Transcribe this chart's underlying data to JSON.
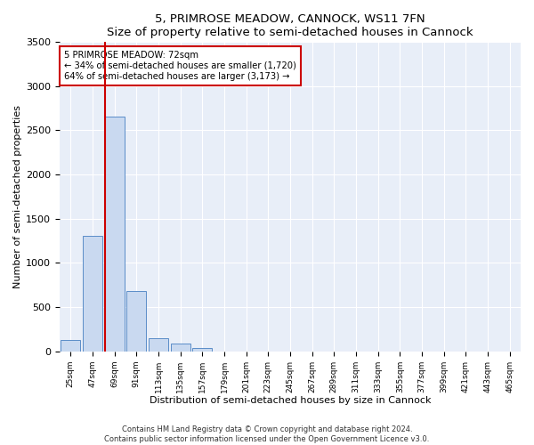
{
  "title1": "5, PRIMROSE MEADOW, CANNOCK, WS11 7FN",
  "title2": "Size of property relative to semi-detached houses in Cannock",
  "xlabel": "Distribution of semi-detached houses by size in Cannock",
  "ylabel": "Number of semi-detached properties",
  "categories": [
    "25sqm",
    "47sqm",
    "69sqm",
    "91sqm",
    "113sqm",
    "135sqm",
    "157sqm",
    "179sqm",
    "201sqm",
    "223sqm",
    "245sqm",
    "267sqm",
    "289sqm",
    "311sqm",
    "333sqm",
    "355sqm",
    "377sqm",
    "399sqm",
    "421sqm",
    "443sqm",
    "465sqm"
  ],
  "values": [
    130,
    1310,
    2650,
    680,
    150,
    85,
    40,
    0,
    0,
    0,
    0,
    0,
    0,
    0,
    0,
    0,
    0,
    0,
    0,
    0,
    0
  ],
  "bar_color": "#c9d9f0",
  "bar_edge_color": "#5b8dc8",
  "vline_color": "#cc0000",
  "annotation_line1": "5 PRIMROSE MEADOW: 72sqm",
  "annotation_line2": "← 34% of semi-detached houses are smaller (1,720)",
  "annotation_line3": "64% of semi-detached houses are larger (3,173) →",
  "annotation_box_color": "#ffffff",
  "annotation_box_edge": "#cc0000",
  "ylim": [
    0,
    3500
  ],
  "yticks": [
    0,
    500,
    1000,
    1500,
    2000,
    2500,
    3000,
    3500
  ],
  "footer1": "Contains HM Land Registry data © Crown copyright and database right 2024.",
  "footer2": "Contains public sector information licensed under the Open Government Licence v3.0.",
  "plot_bg_color": "#e8eef8"
}
